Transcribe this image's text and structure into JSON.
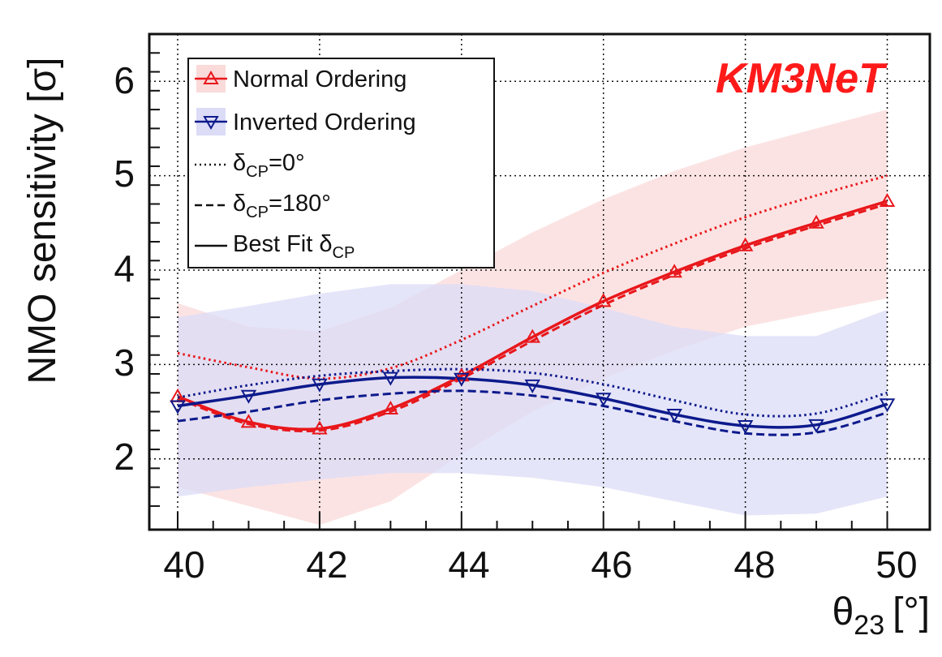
{
  "chart_data": {
    "type": "line",
    "brand": "KM3NeT",
    "brand_color": "#ff1a1a",
    "xlabel": "θ",
    "xlabel_sub": "23",
    "xlabel_unit": "[°]",
    "ylabel": "NMO sensitivity [σ]",
    "xlim": [
      39.6,
      50.6
    ],
    "ylim": [
      1.25,
      6.5
    ],
    "x_ticks": [
      40,
      42,
      44,
      46,
      48,
      50
    ],
    "y_ticks": [
      2,
      3,
      4,
      5,
      6
    ],
    "x_tick_labels": [
      "40",
      "42",
      "44",
      "46",
      "48",
      "50"
    ],
    "y_tick_labels": [
      "2",
      "3",
      "4",
      "5",
      "6"
    ],
    "grid": true,
    "legend": {
      "no": "Normal Ordering",
      "io": "Inverted Ordering",
      "dcp0_pre": "δ",
      "dcp0_sub": "CP",
      "dcp0_post": "=0°",
      "dcp180_pre": "δ",
      "dcp180_sub": "CP",
      "dcp180_post": "=180°",
      "best_pre": "Best Fit δ",
      "best_sub": "CP"
    },
    "colors": {
      "no": "#e8171b",
      "io": "#0d1a8c",
      "no_band": "#fbdada",
      "io_band": "#dcdcf7"
    },
    "markers_x": [
      40,
      41,
      42,
      43,
      44,
      45,
      46,
      47,
      48,
      49,
      50
    ],
    "series": [
      {
        "name": "Normal Ordering, Best Fit δCP",
        "ordering": "no",
        "style": "solid",
        "x": [
          40,
          41,
          42,
          43,
          44,
          45,
          46,
          47,
          48,
          49,
          50
        ],
        "values": [
          2.66,
          2.39,
          2.32,
          2.53,
          2.88,
          3.29,
          3.67,
          3.98,
          4.26,
          4.5,
          4.73
        ]
      },
      {
        "name": "Normal Ordering, δCP=180°",
        "ordering": "no",
        "style": "dashed",
        "x": [
          40,
          41,
          42,
          43,
          44,
          45,
          46,
          47,
          48,
          49,
          50
        ],
        "values": [
          2.64,
          2.37,
          2.3,
          2.5,
          2.85,
          3.25,
          3.63,
          3.95,
          4.23,
          4.47,
          4.7
        ]
      },
      {
        "name": "Normal Ordering, δCP=0°",
        "ordering": "no",
        "style": "dotted",
        "x": [
          40,
          41,
          42,
          43,
          44,
          45,
          46,
          47,
          48,
          49,
          50
        ],
        "values": [
          3.12,
          2.97,
          2.85,
          2.96,
          3.26,
          3.62,
          3.97,
          4.28,
          4.56,
          4.79,
          5.0
        ]
      },
      {
        "name": "Inverted Ordering, Best Fit δCP",
        "ordering": "io",
        "style": "solid",
        "x": [
          40,
          41,
          42,
          43,
          44,
          45,
          46,
          47,
          48,
          49,
          50
        ],
        "values": [
          2.56,
          2.67,
          2.79,
          2.86,
          2.85,
          2.78,
          2.64,
          2.47,
          2.35,
          2.36,
          2.58
        ]
      },
      {
        "name": "Inverted Ordering, δCP=180°",
        "ordering": "io",
        "style": "dashed",
        "x": [
          40,
          41,
          42,
          43,
          44,
          45,
          46,
          47,
          48,
          49,
          50
        ],
        "values": [
          2.4,
          2.5,
          2.62,
          2.69,
          2.72,
          2.67,
          2.56,
          2.4,
          2.27,
          2.28,
          2.49
        ]
      },
      {
        "name": "Inverted Ordering, δCP=0°",
        "ordering": "io",
        "style": "dotted",
        "x": [
          40,
          41,
          42,
          43,
          44,
          45,
          46,
          47,
          48,
          49,
          50
        ],
        "values": [
          2.65,
          2.78,
          2.88,
          2.93,
          2.95,
          2.91,
          2.79,
          2.62,
          2.47,
          2.48,
          2.7
        ]
      }
    ],
    "bands": [
      {
        "name": "Normal Ordering band",
        "ordering": "no",
        "x": [
          40,
          41,
          42,
          43,
          44,
          45,
          46,
          47,
          48,
          49,
          50
        ],
        "low": [
          1.7,
          1.5,
          1.3,
          1.55,
          2.05,
          2.5,
          2.85,
          3.15,
          3.4,
          3.55,
          3.7
        ],
        "high": [
          3.65,
          3.4,
          3.35,
          3.6,
          4.0,
          4.4,
          4.75,
          5.05,
          5.3,
          5.5,
          5.7
        ]
      },
      {
        "name": "Inverted Ordering band",
        "ordering": "io",
        "x": [
          40,
          41,
          42,
          43,
          44,
          45,
          46,
          47,
          48,
          49,
          50
        ],
        "low": [
          1.6,
          1.7,
          1.78,
          1.85,
          1.85,
          1.8,
          1.7,
          1.55,
          1.4,
          1.42,
          1.6
        ],
        "high": [
          3.5,
          3.62,
          3.75,
          3.85,
          3.85,
          3.78,
          3.6,
          3.4,
          3.3,
          3.3,
          3.58
        ]
      }
    ]
  }
}
